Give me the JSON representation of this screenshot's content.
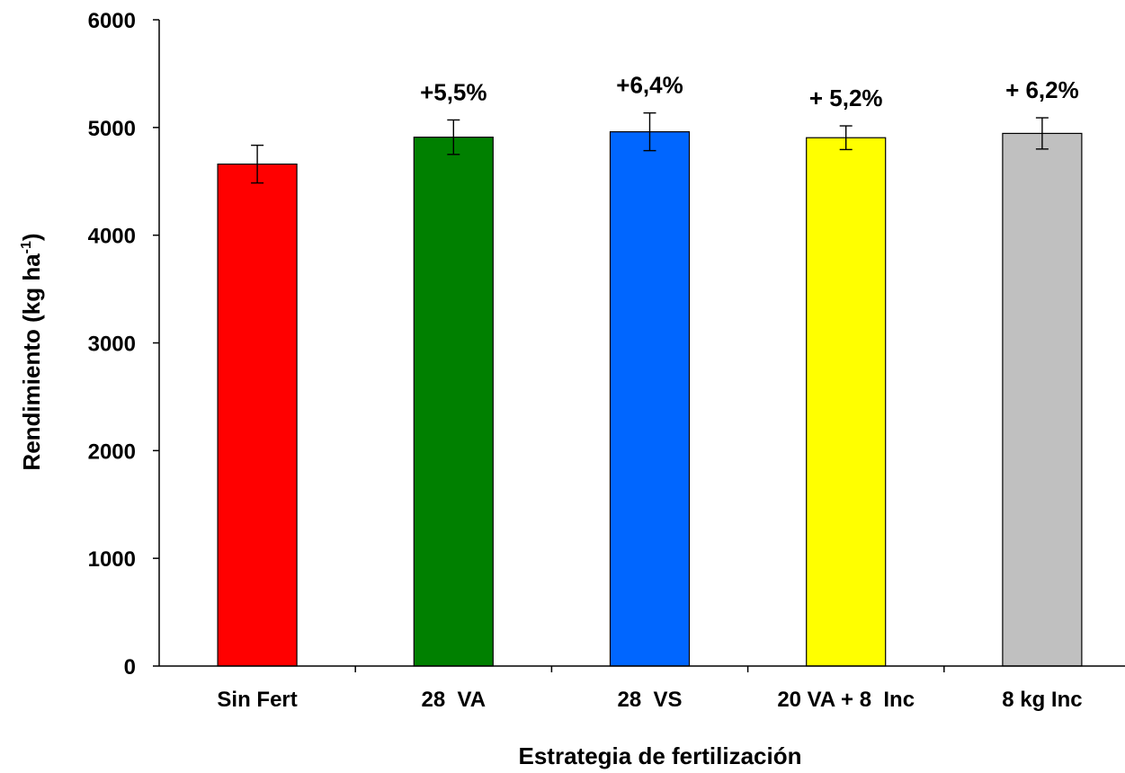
{
  "chart_data": {
    "type": "bar",
    "title": "",
    "xlabel": "Estrategia de fertilización",
    "ylabel_main": "Rendimiento (kg ha",
    "ylabel_sup": "-1",
    "ylabel_end": ")",
    "ylim": [
      0,
      6000
    ],
    "yticks": [
      "0",
      "1000",
      "2000",
      "3000",
      "4000",
      "5000",
      "6000"
    ],
    "grid": false,
    "legend": "none",
    "categories": [
      "Sin Fert",
      "28  VA",
      "28  VS",
      "20 VA + 8  Inc",
      "8 kg Inc"
    ],
    "values": [
      4660,
      4910,
      4960,
      4905,
      4945
    ],
    "errors": [
      175,
      160,
      175,
      110,
      145
    ],
    "colors": [
      "#ff0000",
      "#008000",
      "#0066ff",
      "#ffff00",
      "#c0c0c0"
    ],
    "annotations": [
      "",
      "+5,5%",
      "+6,4%",
      "+ 5,2%",
      "+ 6,2%"
    ]
  }
}
